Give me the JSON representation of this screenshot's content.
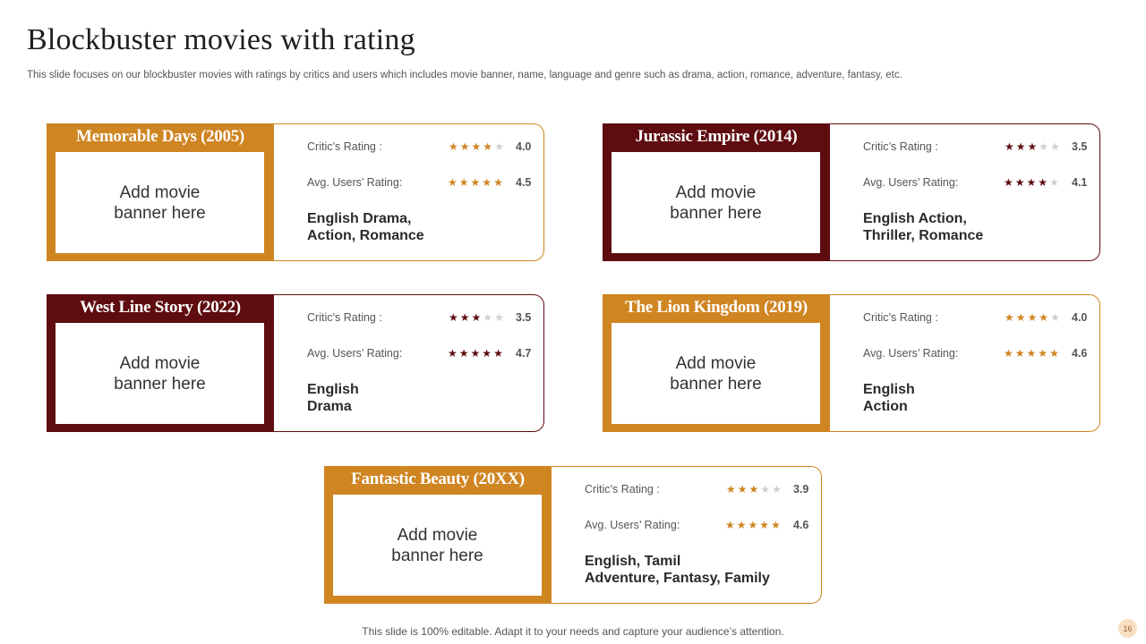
{
  "title": "Blockbuster movies with rating",
  "subtitle": "This slide focuses on our blockbuster movies with ratings by critics and users which includes movie banner, name, language and genre such as drama, action, romance, adventure, fantasy, etc.",
  "colors": {
    "accent_orange": "#cf8522",
    "accent_maroon": "#5e0c10",
    "star_empty": "#d0d0d0"
  },
  "cards": [
    {
      "theme": "orange",
      "title": "Memorable Days (2005)",
      "banner_text": "Add movie banner here",
      "critic_label": "Critic’s Rating :",
      "critic_value": "4.0",
      "user_label": "Avg. Users’ Rating:",
      "user_value": "4.5",
      "genre_line1": "English Drama,",
      "genre_line2": "Action, Romance"
    },
    {
      "theme": "maroon",
      "title": "Jurassic Empire (2014)",
      "banner_text": "Add movie banner here",
      "critic_label": "Critic’s Rating :",
      "critic_value": "3.5",
      "user_label": "Avg. Users’ Rating:",
      "user_value": "4.1",
      "genre_line1": "English Action,",
      "genre_line2": "Thriller, Romance"
    },
    {
      "theme": "maroon",
      "title": "West Line Story (2022)",
      "banner_text": "Add movie banner here",
      "critic_label": "Critic’s Rating :",
      "critic_value": "3.5",
      "user_label": "Avg. Users’ Rating:",
      "user_value": "4.7",
      "genre_line1": "English",
      "genre_line2": "Drama"
    },
    {
      "theme": "orange",
      "title": "The Lion Kingdom (2019)",
      "banner_text": "Add movie banner here",
      "critic_label": "Critic’s Rating :",
      "critic_value": "4.0",
      "user_label": "Avg. Users’ Rating:",
      "user_value": "4.6",
      "genre_line1": "English",
      "genre_line2": "Action"
    },
    {
      "theme": "orange",
      "title": "Fantastic Beauty (20XX)",
      "banner_text": "Add movie banner here",
      "critic_label": "Critic’s Rating :",
      "critic_value": "3.9",
      "user_label": "Avg. Users’ Rating:",
      "user_value": "4.6",
      "genre_line1": "English, Tamil",
      "genre_line2": "Adventure, Fantasy, Family"
    }
  ],
  "footer": "This slide is 100% editable. Adapt it to your needs and capture your audience’s attention.",
  "page_number": "16"
}
